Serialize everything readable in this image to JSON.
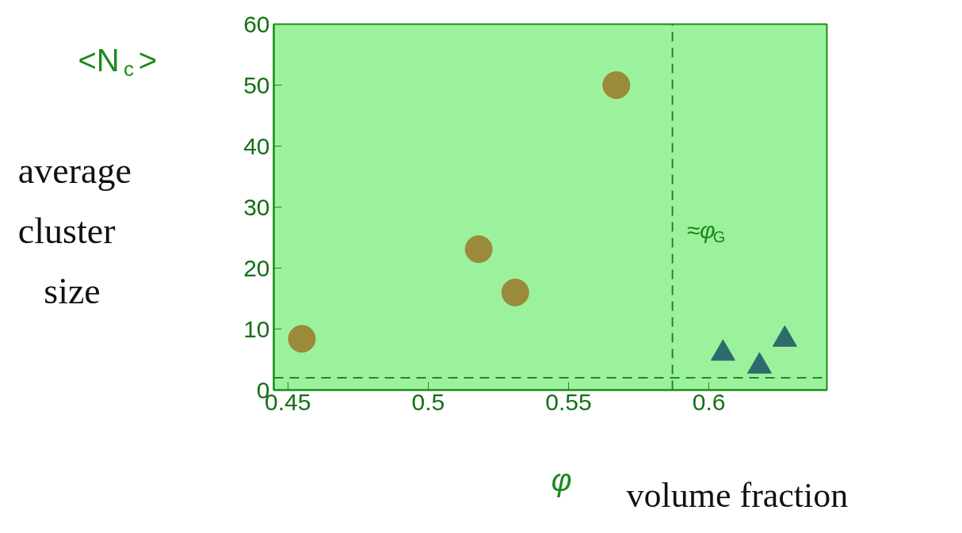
{
  "chart_data": {
    "type": "scatter",
    "xlabel": "φ",
    "ylabel": "<N$_{c}$>",
    "annotations": [
      "average cluster size",
      "volume fraction"
    ],
    "xlim": [
      0.445,
      0.642
    ],
    "ylim": [
      0,
      60
    ],
    "xticks": [
      0.45,
      0.5,
      0.55,
      0.6
    ],
    "yticks": [
      0,
      10,
      20,
      30,
      40,
      50,
      60
    ],
    "grid": false,
    "series": [
      {
        "color": "#9b8a3a",
        "marker": "circle",
        "x": [
          0.455,
          0.518,
          0.531,
          0.567
        ],
        "values": [
          8.4,
          23.1,
          16,
          50
        ]
      },
      {
        "color": "#2e6b6e",
        "marker": "triangle",
        "x": [
          0.605,
          0.618,
          0.627
        ],
        "values": [
          6,
          3.9,
          8.3
        ]
      }
    ],
    "ref_lines": [
      {
        "axis": "x",
        "value": 0.587,
        "label": "≈φ$_{G}$",
        "line_style": "dashed"
      },
      {
        "axis": "y",
        "value": 2,
        "label": null,
        "line_style": "dashed"
      }
    ]
  }
}
